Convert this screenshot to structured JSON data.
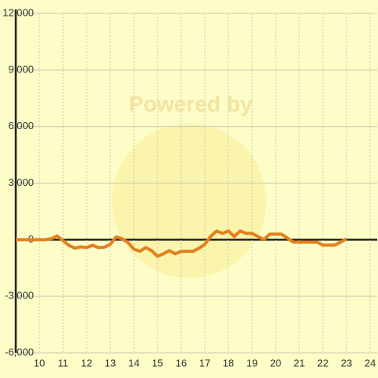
{
  "chart_data": {
    "type": "line",
    "watermark": "Powered by",
    "x": [
      9,
      9.25,
      9.5,
      9.75,
      10,
      10.25,
      10.5,
      10.75,
      11,
      11.25,
      11.5,
      11.75,
      12,
      12.25,
      12.5,
      12.75,
      13,
      13.25,
      13.5,
      13.75,
      14,
      14.25,
      14.5,
      14.75,
      15,
      15.25,
      15.5,
      15.75,
      16,
      16.25,
      16.5,
      16.75,
      17,
      17.25,
      17.5,
      17.75,
      18,
      18.25,
      18.5,
      18.75,
      19,
      19.25,
      19.5,
      19.75,
      20,
      20.25,
      20.5,
      20.75,
      21,
      21.25,
      21.5,
      21.75,
      22,
      22.25,
      22.5,
      22.75,
      23
    ],
    "series": [
      {
        "color": "#e2801e",
        "values": [
          0,
          0,
          0,
          0,
          0,
          0,
          50,
          200,
          -50,
          -300,
          -450,
          -380,
          -420,
          -300,
          -420,
          -400,
          -250,
          150,
          50,
          -150,
          -500,
          -620,
          -420,
          -580,
          -880,
          -750,
          -580,
          -750,
          -620,
          -620,
          -620,
          -460,
          -250,
          170,
          460,
          330,
          460,
          170,
          460,
          330,
          330,
          170,
          0,
          290,
          290,
          290,
          80,
          -130,
          -130,
          -130,
          -130,
          -130,
          -290,
          -290,
          -290,
          -130,
          40
        ]
      }
    ],
    "xlim": [
      9,
      24.3
    ],
    "xticks": [
      10,
      11,
      12,
      13,
      14,
      15,
      16,
      17,
      18,
      19,
      20,
      21,
      22,
      23,
      24
    ],
    "ylim": [
      -6000,
      12000
    ],
    "yticks": [
      {
        "value": -6000,
        "label": "-6,000"
      },
      {
        "value": -3000,
        "label": "-3,000"
      },
      0,
      {
        "value": 3000,
        "label": "3,000"
      },
      {
        "value": 6000,
        "label": "6,000"
      },
      {
        "value": 9000,
        "label": "9,000"
      },
      {
        "value": 12000,
        "label": "12,000"
      }
    ],
    "grid": true
  }
}
